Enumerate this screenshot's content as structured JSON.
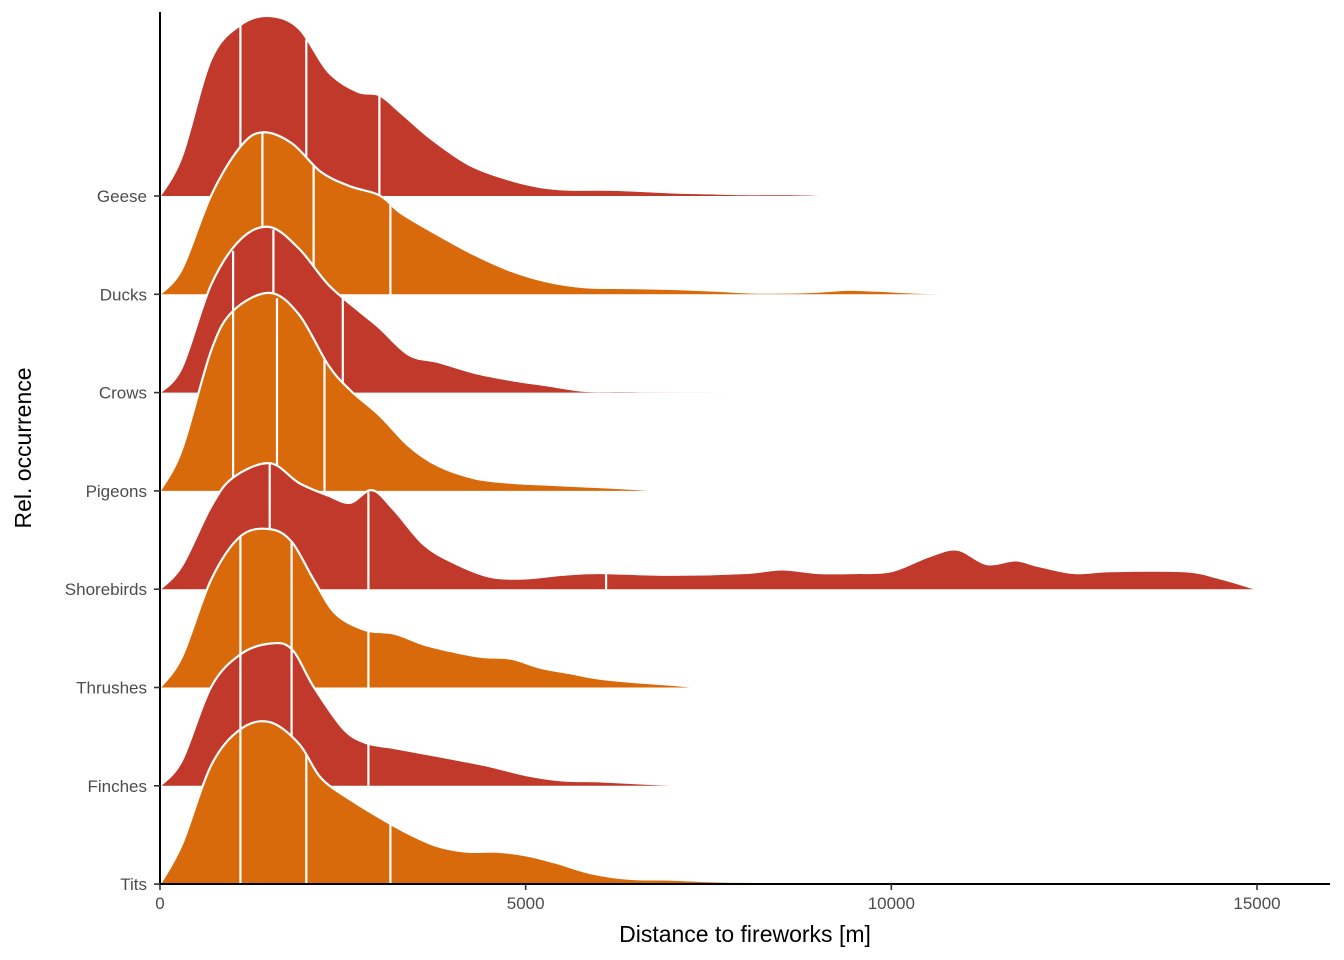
{
  "chart_data": {
    "type": "area",
    "subtype": "ridgeline-density",
    "xlabel": "Distance to fireworks [m]",
    "ylabel": "Rel. occurrence",
    "xlim": [
      0,
      16000
    ],
    "x_ticks": [
      0,
      5000,
      10000,
      15000
    ],
    "grid": false,
    "legend": "none",
    "colors": {
      "red": "#c0392b",
      "orange": "#d96a0b",
      "outline": "#ffffff",
      "axis": "#000000"
    },
    "series": [
      {
        "name": "Geese",
        "color": "red",
        "x": [
          0,
          300,
          700,
          1100,
          1500,
          1900,
          2300,
          2700,
          3000,
          3300,
          3700,
          4200,
          4700,
          5200,
          5600,
          6000,
          6500,
          7000,
          7500,
          8000,
          8600,
          9100,
          9500
        ],
        "y": [
          0.0,
          0.22,
          0.76,
          0.95,
          1.0,
          0.93,
          0.69,
          0.58,
          0.56,
          0.46,
          0.32,
          0.18,
          0.1,
          0.05,
          0.035,
          0.035,
          0.03,
          0.02,
          0.015,
          0.01,
          0.01,
          0.005,
          0.0
        ],
        "quartiles": [
          1100,
          2000,
          3000
        ]
      },
      {
        "name": "Ducks",
        "color": "orange",
        "x": [
          0,
          300,
          700,
          1100,
          1400,
          1800,
          2200,
          2600,
          3000,
          3300,
          3800,
          4300,
          4800,
          5300,
          5800,
          6400,
          7000,
          7600,
          8100,
          8600,
          9000,
          9400,
          9800,
          10300,
          11000
        ],
        "y": [
          0.0,
          0.14,
          0.55,
          0.82,
          0.9,
          0.84,
          0.68,
          0.6,
          0.55,
          0.45,
          0.33,
          0.22,
          0.13,
          0.07,
          0.04,
          0.035,
          0.03,
          0.02,
          0.01,
          0.01,
          0.015,
          0.025,
          0.02,
          0.01,
          0.0
        ],
        "quartiles": [
          1400,
          2100,
          3150
        ]
      },
      {
        "name": "Crows",
        "color": "red",
        "x": [
          0,
          300,
          700,
          1100,
          1500,
          1900,
          2300,
          2700,
          3000,
          3400,
          3800,
          4300,
          4800,
          5300,
          5800,
          6300,
          6800,
          7300,
          7800,
          8300,
          8700
        ],
        "y": [
          0.0,
          0.14,
          0.6,
          0.85,
          0.92,
          0.8,
          0.6,
          0.46,
          0.36,
          0.21,
          0.17,
          0.11,
          0.07,
          0.04,
          0.01,
          0.008,
          0.006,
          0.005,
          0.004,
          0.002,
          0.0
        ],
        "quartiles": [
          1000,
          1550,
          2500
        ]
      },
      {
        "name": "Pigeons",
        "color": "orange",
        "x": [
          0,
          300,
          700,
          1000,
          1500,
          1900,
          2300,
          2600,
          3000,
          3400,
          3800,
          4300,
          4800,
          5300,
          5800,
          6300,
          6900
        ],
        "y": [
          0.0,
          0.23,
          0.78,
          1.0,
          1.1,
          0.98,
          0.7,
          0.56,
          0.42,
          0.25,
          0.14,
          0.07,
          0.045,
          0.035,
          0.025,
          0.015,
          0.0
        ],
        "quartiles": [
          1000,
          1600,
          2250
        ]
      },
      {
        "name": "Shorebirds",
        "color": "red",
        "x": [
          0,
          300,
          700,
          1000,
          1500,
          1900,
          2300,
          2600,
          2900,
          3200,
          3600,
          4000,
          4500,
          5000,
          5500,
          6000,
          7000,
          8000,
          8500,
          9000,
          9500,
          10000,
          10500,
          10900,
          11300,
          11700,
          12000,
          12500,
          13000,
          14000,
          14500,
          15000
        ],
        "y": [
          0.0,
          0.13,
          0.46,
          0.62,
          0.7,
          0.59,
          0.52,
          0.48,
          0.55,
          0.44,
          0.25,
          0.15,
          0.07,
          0.06,
          0.08,
          0.09,
          0.08,
          0.09,
          0.11,
          0.09,
          0.09,
          0.1,
          0.18,
          0.22,
          0.14,
          0.16,
          0.13,
          0.09,
          0.1,
          0.1,
          0.06,
          0.0
        ],
        "quartiles": [
          1500,
          2850,
          6100
        ]
      },
      {
        "name": "Thrushes",
        "color": "orange",
        "x": [
          0,
          300,
          700,
          1100,
          1500,
          1800,
          2100,
          2400,
          2800,
          3200,
          3600,
          4000,
          4400,
          4800,
          5200,
          5600,
          6000,
          6500,
          7000,
          7400
        ],
        "y": [
          0.0,
          0.17,
          0.6,
          0.84,
          0.88,
          0.81,
          0.6,
          0.41,
          0.32,
          0.3,
          0.24,
          0.2,
          0.17,
          0.16,
          0.11,
          0.08,
          0.05,
          0.03,
          0.015,
          0.0
        ],
        "quartiles": [
          1100,
          1800,
          2850
        ]
      },
      {
        "name": "Finches",
        "color": "red",
        "x": [
          0,
          300,
          700,
          1100,
          1500,
          1800,
          2100,
          2500,
          2800,
          3200,
          3600,
          4000,
          4500,
          5000,
          5500,
          6000,
          6500,
          7000,
          7200
        ],
        "y": [
          0.0,
          0.14,
          0.55,
          0.73,
          0.79,
          0.76,
          0.55,
          0.32,
          0.24,
          0.21,
          0.18,
          0.15,
          0.11,
          0.06,
          0.03,
          0.025,
          0.015,
          0.005,
          0.0
        ],
        "quartiles": [
          1100,
          1800,
          2850
        ]
      },
      {
        "name": "Tits",
        "color": "orange",
        "x": [
          0,
          300,
          700,
          1100,
          1500,
          1900,
          2200,
          2600,
          3000,
          3400,
          3800,
          4200,
          4600,
          5000,
          5400,
          5900,
          6400,
          7000,
          7600,
          8200,
          8800,
          9300
        ],
        "y": [
          0.0,
          0.22,
          0.66,
          0.86,
          0.9,
          0.78,
          0.59,
          0.47,
          0.37,
          0.28,
          0.21,
          0.18,
          0.18,
          0.16,
          0.12,
          0.06,
          0.03,
          0.025,
          0.015,
          0.012,
          0.008,
          0.0
        ],
        "quartiles": [
          1100,
          2000,
          3150
        ]
      }
    ]
  }
}
